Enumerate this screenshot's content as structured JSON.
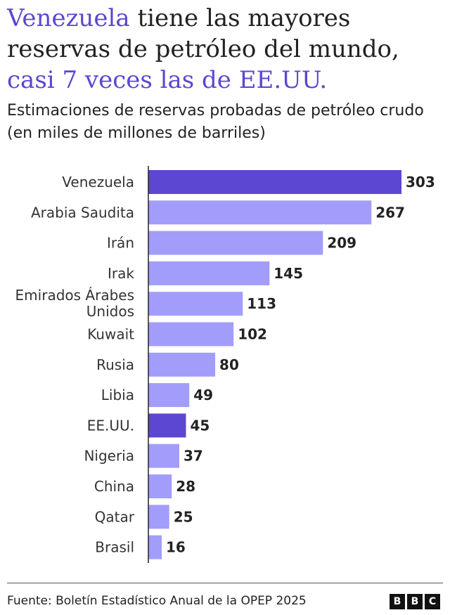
{
  "title": {
    "part1": "Venezuela",
    "part2": " tiene las mayores reservas de petróleo del mundo, ",
    "part3": "casi 7 veces las de EE.UU."
  },
  "subtitle": "Estimaciones de reservas probadas de petróleo crudo (en miles de millones de barriles)",
  "source": "Fuente: Boletín Estadístico Anual de la OPEP 2025",
  "logo": [
    "B",
    "B",
    "C"
  ],
  "colors": {
    "highlight": "#5b47d1",
    "bar": "#a29dfa",
    "title_highlight": "#5b47d1"
  },
  "chart_data": {
    "type": "bar",
    "orientation": "horizontal",
    "categories": [
      "Venezuela",
      "Arabia Saudita",
      "Irán",
      "Irak",
      "Emirados Árabes Unidos",
      "Kuwait",
      "Rusia",
      "Libia",
      "EE.UU.",
      "Nigeria",
      "China",
      "Qatar",
      "Brasil"
    ],
    "values": [
      303,
      267,
      209,
      145,
      113,
      102,
      80,
      49,
      45,
      37,
      28,
      25,
      16
    ],
    "highlighted": [
      "Venezuela",
      "EE.UU."
    ],
    "xlim": [
      0,
      303
    ],
    "grid": false
  }
}
